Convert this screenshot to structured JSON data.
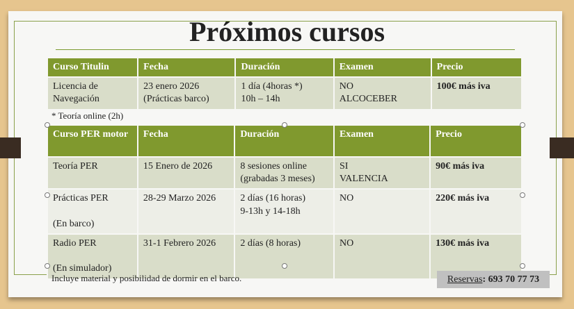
{
  "title": "Próximos cursos",
  "table1": {
    "headers": [
      "Curso Titulin",
      "Fecha",
      "Duración",
      "Examen",
      "Precio"
    ],
    "rows": [
      [
        "Licencia de Navegación",
        "23 enero 2026\n(Prácticas barco)",
        "1 día (4horas *)\n10h – 14h",
        "NO\nALCOCEBER",
        "100€ más iva"
      ]
    ]
  },
  "note": "* Teoría online (2h)",
  "table2": {
    "headers": [
      "Curso PER motor",
      "Fecha",
      "Duración",
      "Examen",
      "Precio"
    ],
    "rows": [
      [
        "Teoría PER",
        "15 Enero de 2026",
        "8 sesiones online\n(grabadas 3 meses)",
        "SI\nVALENCIA",
        "90€ más iva"
      ],
      [
        "Prácticas PER\n\n(En barco)",
        "28-29 Marzo 2026",
        "2 días (16 horas)\n9-13h y 14-18h",
        "NO",
        "220€ más iva"
      ],
      [
        "Radio PER\n\n(En simulador)",
        "31-1 Febrero 2026",
        "2 días (8 horas)",
        "NO",
        "130€ más iva"
      ]
    ]
  },
  "footer": "Incluye material y posibilidad de dormir en el barco.",
  "reservas": {
    "label": "Reservas",
    "phone": ": 693 70 77 73"
  },
  "colors": {
    "header": "#80992e",
    "row_dark": "#d9ddc9",
    "row_light": "#edeee7"
  }
}
